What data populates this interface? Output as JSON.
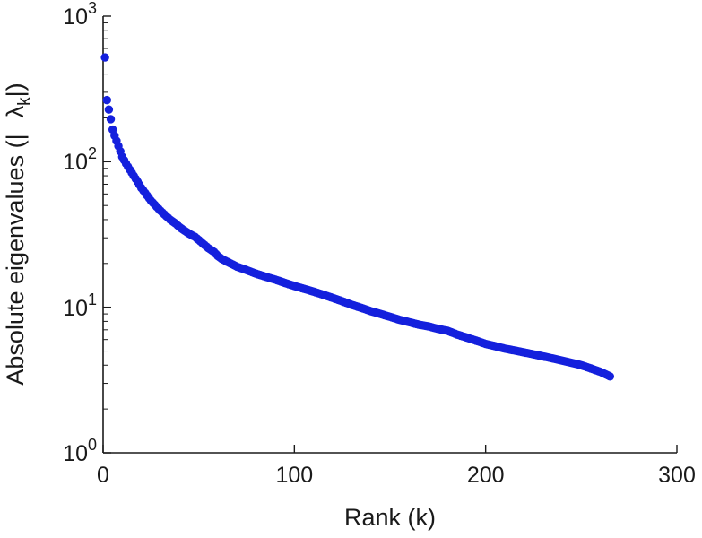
{
  "figure": {
    "background": "#ffffff",
    "axis_color": "#1a1a1a",
    "marker_color": "#1420dd"
  },
  "chart_data": {
    "type": "scatter",
    "title": "",
    "xlabel": "Rank (k)",
    "ylabel_prefix": "Absolute eigenvalues (|",
    "ylabel_symbol": "λ",
    "ylabel_symbol_sub": "k",
    "ylabel_suffix": "|)",
    "series_name": "absolute eigenvalues",
    "marker": "point",
    "grid": false,
    "yscale": "log",
    "xlim": [
      0,
      300
    ],
    "ylim": [
      1,
      1000
    ],
    "x_ticks": [
      0,
      100,
      200,
      300
    ],
    "y_tick_base": "10",
    "y_tick_exponents": [
      0,
      1,
      2,
      3
    ],
    "y_ticks": [
      1,
      10,
      100,
      1000
    ],
    "points": [
      [
        1,
        520
      ],
      [
        2,
        265
      ],
      [
        3,
        228
      ],
      [
        4,
        196
      ],
      [
        5,
        166
      ],
      [
        6,
        151
      ],
      [
        7,
        139
      ],
      [
        8,
        128
      ],
      [
        9,
        118
      ],
      [
        10,
        108
      ],
      [
        12,
        97
      ],
      [
        14,
        88
      ],
      [
        16,
        80
      ],
      [
        18,
        73
      ],
      [
        20,
        66
      ],
      [
        22,
        61
      ],
      [
        25,
        54
      ],
      [
        28,
        49
      ],
      [
        30,
        46
      ],
      [
        32,
        43.5
      ],
      [
        35,
        40
      ],
      [
        38,
        37.5
      ],
      [
        40,
        35.5
      ],
      [
        42,
        34
      ],
      [
        45,
        32
      ],
      [
        48,
        30.5
      ],
      [
        50,
        29
      ],
      [
        52,
        27.5
      ],
      [
        55,
        25.5
      ],
      [
        58,
        24
      ],
      [
        60,
        22.5
      ],
      [
        62,
        21.5
      ],
      [
        65,
        20.5
      ],
      [
        68,
        19.6
      ],
      [
        70,
        19
      ],
      [
        75,
        18
      ],
      [
        80,
        17
      ],
      [
        85,
        16.2
      ],
      [
        90,
        15.5
      ],
      [
        95,
        14.7
      ],
      [
        100,
        14
      ],
      [
        105,
        13.4
      ],
      [
        110,
        12.8
      ],
      [
        115,
        12.2
      ],
      [
        120,
        11.6
      ],
      [
        125,
        11
      ],
      [
        130,
        10.4
      ],
      [
        135,
        9.9
      ],
      [
        140,
        9.4
      ],
      [
        145,
        9
      ],
      [
        150,
        8.6
      ],
      [
        155,
        8.2
      ],
      [
        160,
        7.9
      ],
      [
        165,
        7.6
      ],
      [
        170,
        7.4
      ],
      [
        175,
        7.1
      ],
      [
        180,
        6.9
      ],
      [
        185,
        6.5
      ],
      [
        190,
        6.2
      ],
      [
        195,
        5.9
      ],
      [
        200,
        5.6
      ],
      [
        205,
        5.4
      ],
      [
        210,
        5.2
      ],
      [
        215,
        5.05
      ],
      [
        220,
        4.9
      ],
      [
        225,
        4.75
      ],
      [
        230,
        4.6
      ],
      [
        235,
        4.45
      ],
      [
        240,
        4.3
      ],
      [
        245,
        4.15
      ],
      [
        250,
        4.0
      ],
      [
        255,
        3.8
      ],
      [
        260,
        3.6
      ],
      [
        263,
        3.45
      ],
      [
        265,
        3.35
      ]
    ]
  }
}
